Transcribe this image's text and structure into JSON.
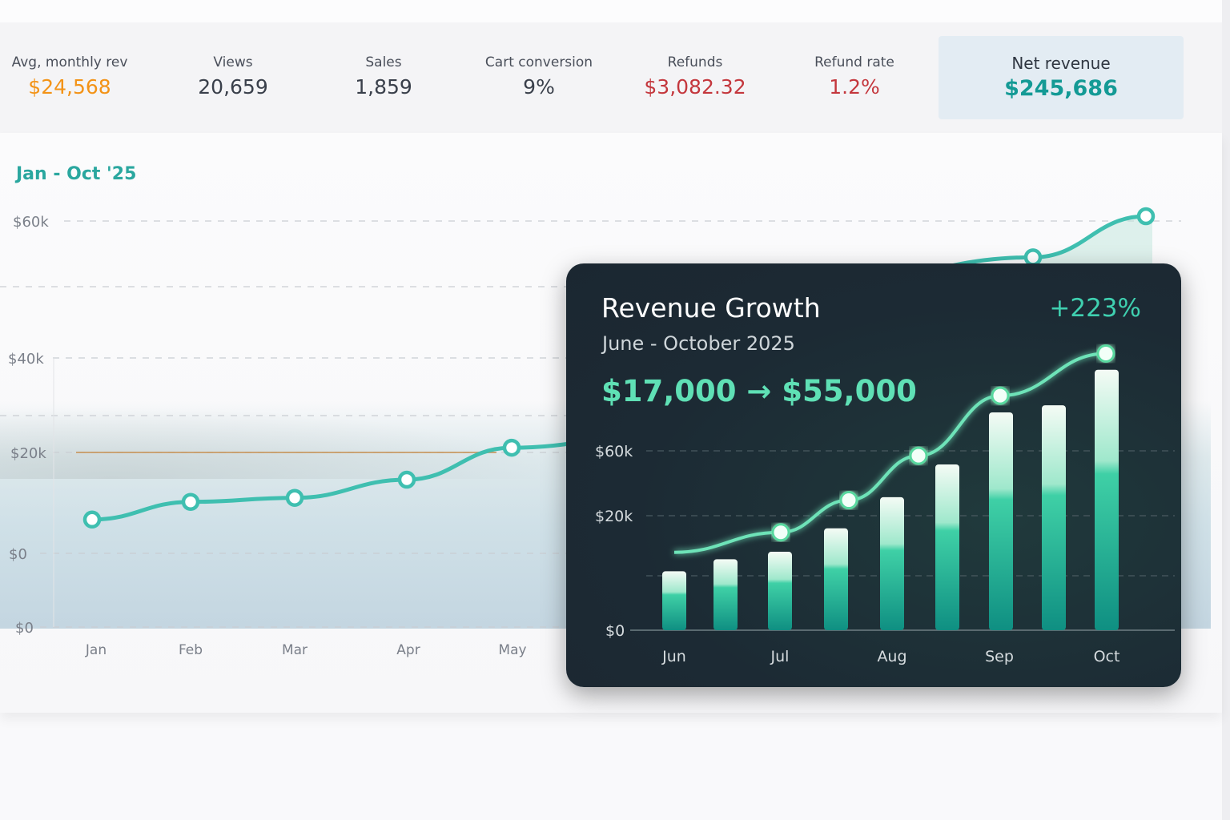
{
  "stats": [
    {
      "label": "Avg, monthly rev",
      "value": "$24,568",
      "color": "#f39317"
    },
    {
      "label": "Views",
      "value": "20,659",
      "color": "#3a404b"
    },
    {
      "label": "Sales",
      "value": "1,859",
      "color": "#3a404b"
    },
    {
      "label": "Cart conversion",
      "value": "9%",
      "color": "#3a404b"
    },
    {
      "label": "Refunds",
      "value": "$3,082.32",
      "color": "#c4373d"
    },
    {
      "label": "Refund rate",
      "value": "1.2%",
      "color": "#c4373d"
    }
  ],
  "net_revenue": {
    "label": "Net revenue",
    "value": "$245,686"
  },
  "chart_data": [
    {
      "type": "line",
      "title": "Jan - Oct '25",
      "y_ticks": [
        "$60k",
        "$40k",
        "$20k",
        "$0",
        "$0"
      ],
      "x_tick_labels": [
        "Jan",
        "Feb",
        "Mar",
        "Apr",
        "May"
      ],
      "categories": [
        "Jan",
        "Feb",
        "Mar",
        "Apr",
        "May",
        "Jun",
        "Jul",
        "Aug",
        "Sep",
        "Oct"
      ],
      "values": [
        6700,
        10200,
        11000,
        14600,
        21000,
        null,
        null,
        null,
        54700,
        60700
      ],
      "reference_line": 20000,
      "ylim": [
        0,
        60000
      ],
      "grid": true,
      "line_color": "#3fbfb0",
      "reference_color": "#c8955a"
    },
    {
      "type": "bar+line",
      "title": "Revenue Growth",
      "subtitle": "June - October 2025",
      "growth": "+223%",
      "from_to": "$17,000 → $55,000",
      "y_ticks": [
        "$60k",
        "$20k",
        "$0"
      ],
      "x_tick_labels": [
        "Jun",
        "Jul",
        "Aug",
        "Sep",
        "Oct"
      ],
      "bar_values": [
        10300,
        12400,
        13700,
        17800,
        31400,
        51600,
        83700,
        88100,
        110000
      ],
      "line_values": [
        13600,
        17100,
        29600,
        57000,
        94000,
        120000
      ],
      "grid": true,
      "bar_color": "#1fbf98",
      "line_color": "#6ee3b8"
    }
  ]
}
